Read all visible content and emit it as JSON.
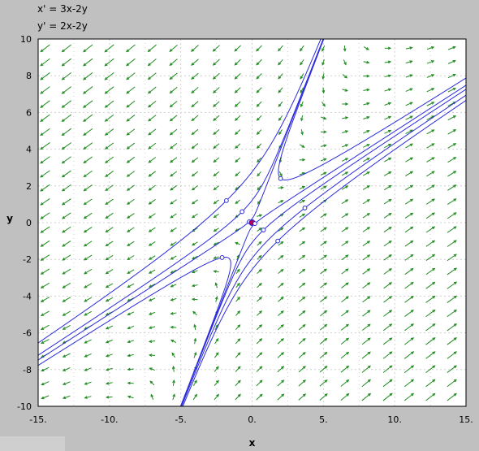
{
  "equations": {
    "line1": "x' = 3x-2y",
    "line2": "y' = 2x-2y"
  },
  "colors": {
    "background": "#c0c0c0",
    "plot_background": "#ffffff",
    "grid": "#cfcfcf",
    "vector_arrows": "#1f8a1f",
    "solution_curves": "#2b2bdc",
    "initial_points": "#2b2bdc",
    "equilibrium": "#b0005a"
  },
  "chart_data": {
    "type": "scatter",
    "subtype": "direction_field",
    "title": "",
    "xlabel": "x",
    "ylabel": "y",
    "xlim": [
      -15,
      15
    ],
    "ylim": [
      -10,
      10
    ],
    "x_ticks": [
      -15,
      -10,
      -5,
      0,
      5,
      10,
      15
    ],
    "x_tick_labels": [
      "-15.",
      "-10.",
      "-5.",
      "0.",
      "5.",
      "10.",
      "15."
    ],
    "y_ticks": [
      -10,
      -8,
      -6,
      -4,
      -2,
      0,
      2,
      4,
      6,
      8,
      10
    ],
    "y_tick_labels": [
      "-10",
      "-8",
      "-6",
      "-4",
      "-2",
      "0",
      "2",
      "4",
      "6",
      "8",
      "10"
    ],
    "grid": true,
    "system": {
      "dx": [
        3,
        -2
      ],
      "dy": [
        2,
        -2
      ]
    },
    "field_grid": {
      "x_start": -14.5,
      "x_step": 1.5,
      "y_start": -9.5,
      "y_step": 0.76
    },
    "equilibrium_point": [
      0,
      0
    ],
    "initial_points": [
      [
        -1.8,
        1.2
      ],
      [
        -0.7,
        0.6
      ],
      [
        -0.2,
        0.05
      ],
      [
        0,
        0
      ],
      [
        0.2,
        -0.05
      ],
      [
        0.8,
        -0.4
      ],
      [
        1.8,
        -1.0
      ],
      [
        -2.1,
        -1.9
      ],
      [
        2.0,
        2.4
      ],
      [
        3.7,
        0.8
      ]
    ]
  }
}
